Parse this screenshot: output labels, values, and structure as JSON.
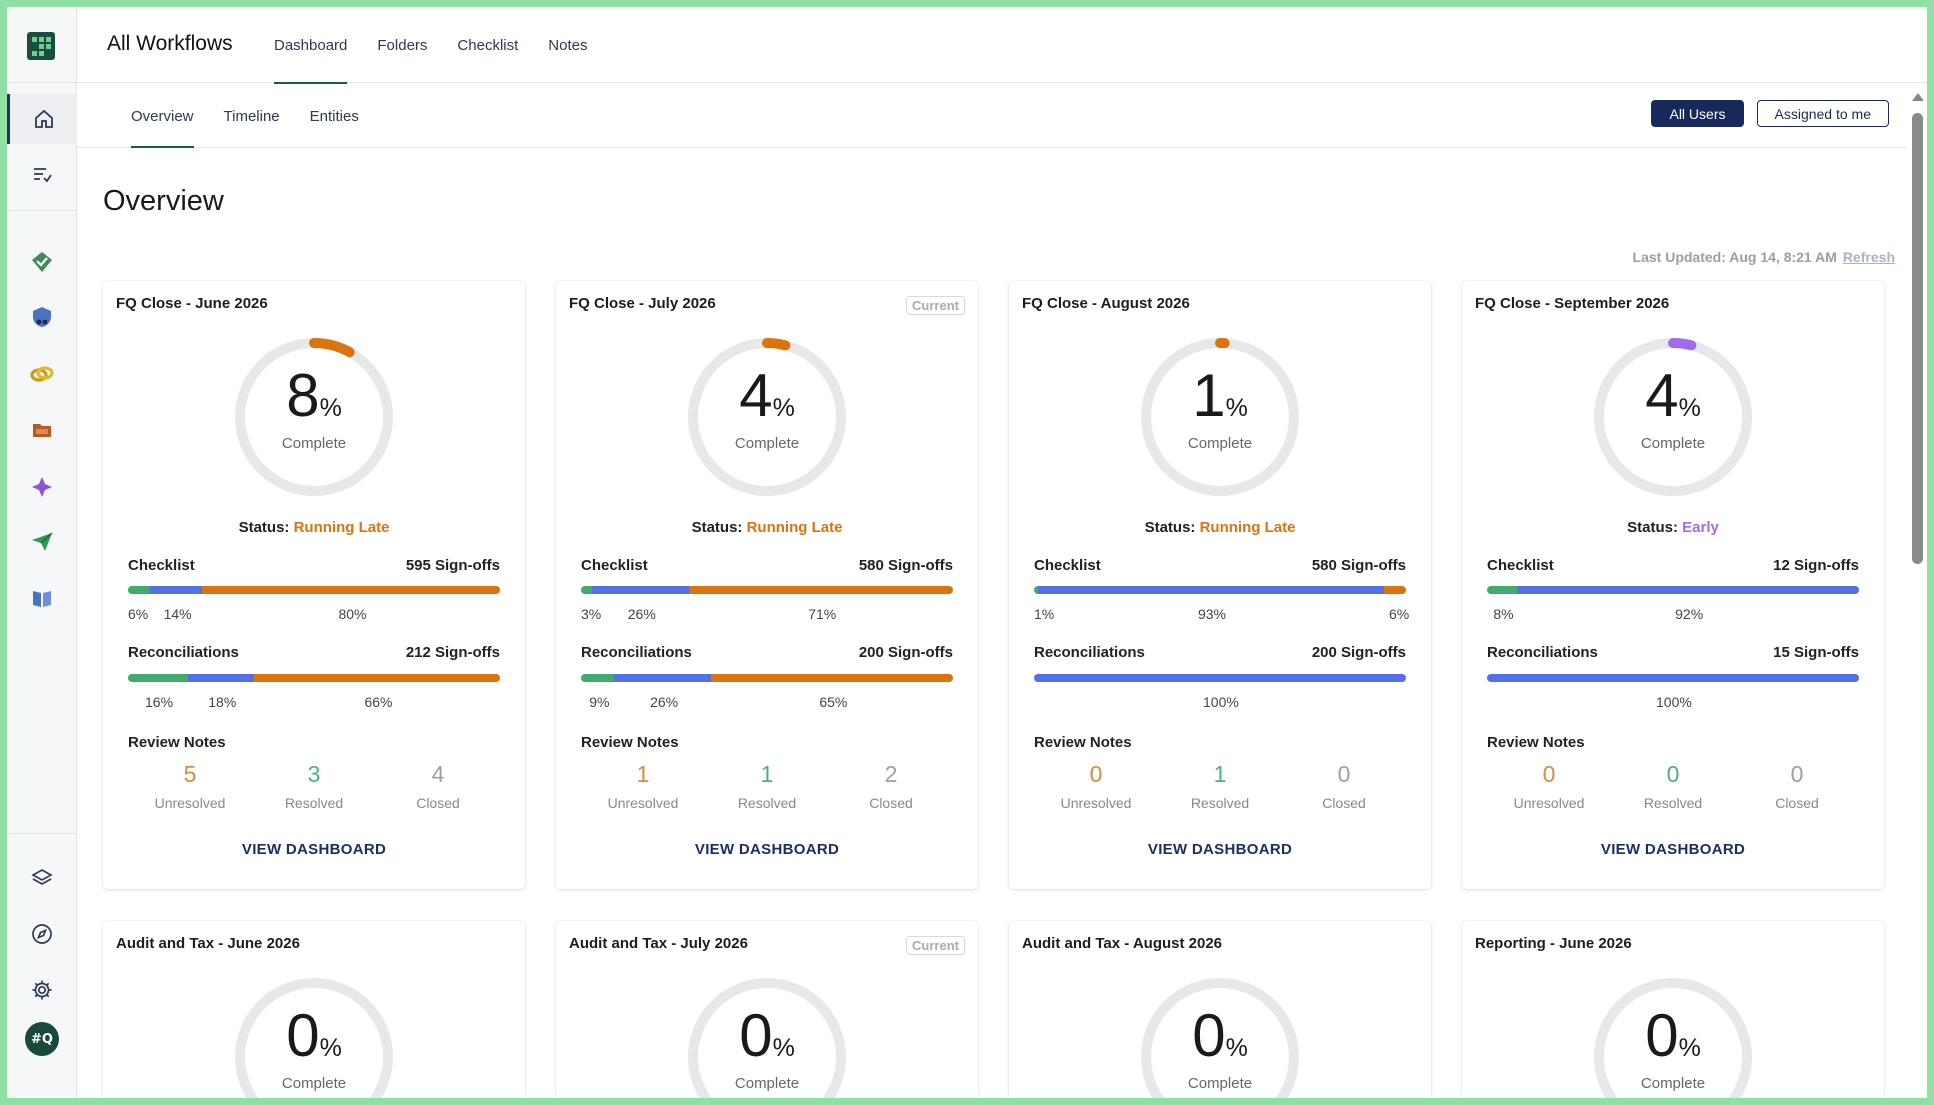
{
  "app": {
    "title": "All Workflows",
    "avatar_initials": "#Q",
    "accent": "#1a5a4a"
  },
  "top_tabs": [
    {
      "label": "Dashboard",
      "active": true
    },
    {
      "label": "Folders",
      "active": false
    },
    {
      "label": "Checklist",
      "active": false
    },
    {
      "label": "Notes",
      "active": false
    }
  ],
  "sub_tabs": [
    {
      "label": "Overview",
      "active": true
    },
    {
      "label": "Timeline",
      "active": false
    },
    {
      "label": "Entities",
      "active": false
    }
  ],
  "filters": {
    "all_users": "All Users",
    "assigned_to_me": "Assigned to me"
  },
  "sidebar": {
    "icons": [
      "home-icon",
      "task-list-icon",
      "checklist-app-icon",
      "shield-icon",
      "link-icon",
      "folder-icon",
      "sparkle-icon",
      "send-icon",
      "book-icon",
      "layers-icon",
      "compass-icon",
      "gear-icon"
    ]
  },
  "page": {
    "title": "Overview",
    "last_updated": "Last Updated: Aug 14, 8:21 AM",
    "refresh": "Refresh"
  },
  "labels": {
    "complete": "Complete",
    "pct": "%",
    "status_prefix": "Status:",
    "checklist": "Checklist",
    "reconciliations": "Reconciliations",
    "review_notes": "Review Notes",
    "unresolved": "Unresolved",
    "resolved": "Resolved",
    "closed": "Closed",
    "view_dashboard": "VIEW DASHBOARD",
    "current": "Current"
  },
  "colors": {
    "green": "#3fac6d",
    "blue": "#5470e6",
    "orange": "#d9740f",
    "purple": "#a26bef",
    "late": "#d9740f",
    "early": "#a26bef",
    "note_unresolved": "#d98a3a",
    "note_resolved": "#4fae86",
    "note_closed": "#9aa0a6"
  },
  "cards": [
    {
      "title": "FQ Close - June 2026",
      "current": false,
      "percent": "8",
      "status": "Running Late",
      "status_kind": "late",
      "checklist_signoffs": "595 Sign-offs",
      "checklist_segments": [
        {
          "label": "6%",
          "value": 6,
          "color": "green"
        },
        {
          "label": "14%",
          "value": 14,
          "color": "blue"
        },
        {
          "label": "80%",
          "value": 80,
          "color": "orange"
        }
      ],
      "recon_signoffs": "212 Sign-offs",
      "recon_segments": [
        {
          "label": "16%",
          "value": 16,
          "color": "green"
        },
        {
          "label": "18%",
          "value": 18,
          "color": "blue"
        },
        {
          "label": "66%",
          "value": 66,
          "color": "orange"
        }
      ],
      "notes": {
        "unresolved": "5",
        "resolved": "3",
        "closed": "4"
      }
    },
    {
      "title": "FQ Close - July 2026",
      "current": true,
      "percent": "4",
      "status": "Running Late",
      "status_kind": "late",
      "checklist_signoffs": "580 Sign-offs",
      "checklist_segments": [
        {
          "label": "3%",
          "value": 3,
          "color": "green"
        },
        {
          "label": "26%",
          "value": 26,
          "color": "blue"
        },
        {
          "label": "71%",
          "value": 71,
          "color": "orange"
        }
      ],
      "recon_signoffs": "200 Sign-offs",
      "recon_segments": [
        {
          "label": "9%",
          "value": 9,
          "color": "green"
        },
        {
          "label": "26%",
          "value": 26,
          "color": "blue"
        },
        {
          "label": "65%",
          "value": 65,
          "color": "orange"
        }
      ],
      "notes": {
        "unresolved": "1",
        "resolved": "1",
        "closed": "2"
      }
    },
    {
      "title": "FQ Close - August 2026",
      "current": false,
      "percent": "1",
      "status": "Running Late",
      "status_kind": "late",
      "checklist_signoffs": "580 Sign-offs",
      "checklist_segments": [
        {
          "label": "1%",
          "value": 1,
          "color": "green"
        },
        {
          "label": "93%",
          "value": 93,
          "color": "blue"
        },
        {
          "label": "6%",
          "value": 6,
          "color": "orange"
        }
      ],
      "recon_signoffs": "200 Sign-offs",
      "recon_segments": [
        {
          "label": "100%",
          "value": 100,
          "color": "blue"
        }
      ],
      "notes": {
        "unresolved": "0",
        "resolved": "1",
        "closed": "0"
      }
    },
    {
      "title": "FQ Close - September 2026",
      "current": false,
      "percent": "4",
      "status": "Early",
      "status_kind": "early",
      "checklist_signoffs": "12 Sign-offs",
      "checklist_segments": [
        {
          "label": "8%",
          "value": 8,
          "color": "green"
        },
        {
          "label": "92%",
          "value": 92,
          "color": "blue"
        }
      ],
      "recon_signoffs": "15 Sign-offs",
      "recon_segments": [
        {
          "label": "100%",
          "value": 100,
          "color": "blue"
        }
      ],
      "notes": {
        "unresolved": "0",
        "resolved": "0",
        "closed": "0"
      }
    }
  ],
  "cards_row2": [
    {
      "title": "Audit and Tax - June 2026",
      "current": false,
      "percent": "0"
    },
    {
      "title": "Audit and Tax - July 2026",
      "current": true,
      "percent": "0"
    },
    {
      "title": "Audit and Tax - August 2026",
      "current": false,
      "percent": "0"
    },
    {
      "title": "Reporting - June 2026",
      "current": false,
      "percent": "0"
    }
  ]
}
